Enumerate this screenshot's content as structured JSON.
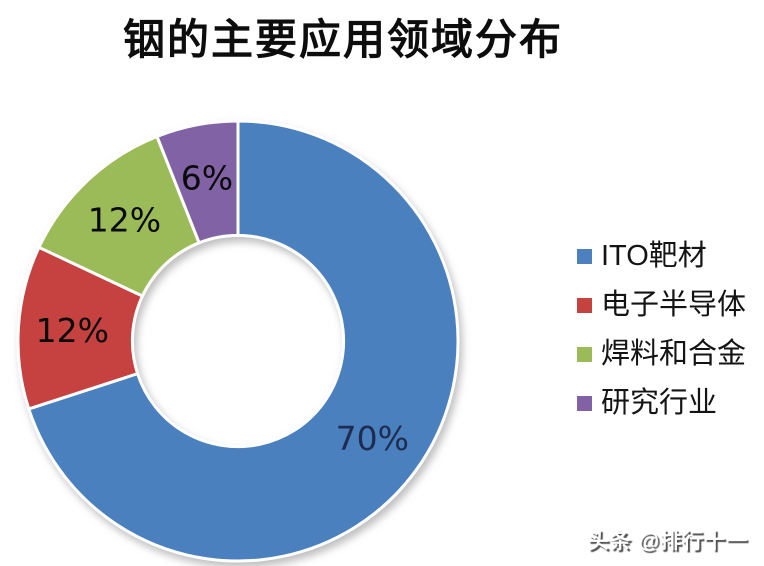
{
  "title": "铟的主要应用领域分布",
  "watermark": "头条 @排行十一",
  "chart_data": {
    "type": "pie",
    "subtype": "donut",
    "title": "铟的主要应用领域分布",
    "categories": [
      "ITO靶材",
      "电子半导体",
      "焊料和合金",
      "研究行业"
    ],
    "values": [
      70,
      12,
      12,
      6
    ],
    "data_labels": [
      "70%",
      "12%",
      "12%",
      "6%"
    ],
    "slice_colors": [
      "#4C80BE",
      "#C5433F",
      "#9BBB59",
      "#8163A5"
    ],
    "data_label_colors": [
      "#1d2c50",
      "#0a0a0a",
      "#0a0a0a",
      "#0a0a0a"
    ],
    "start_angle_deg": 0,
    "direction": "clockwise",
    "inner_radius_ratio": 0.48,
    "slice_gap_color": "#ffffff",
    "legend_position": "right",
    "background": "#ffffff"
  }
}
